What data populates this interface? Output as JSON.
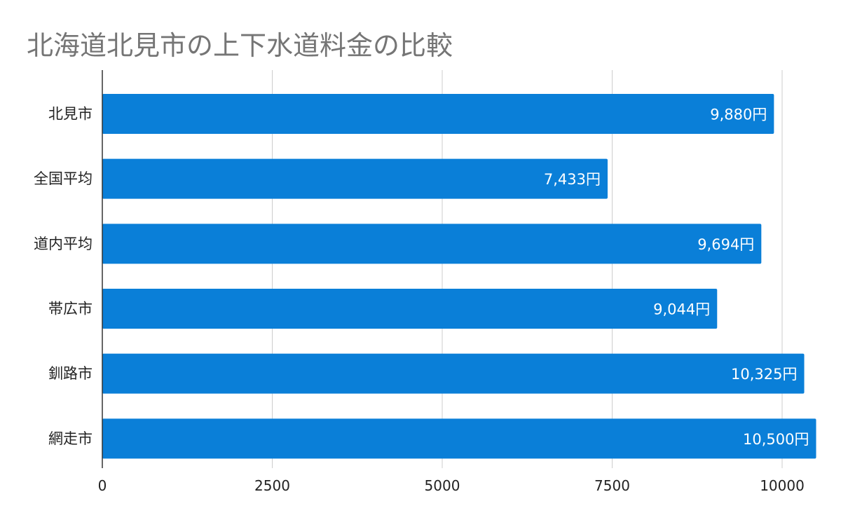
{
  "chart_data": {
    "type": "bar",
    "orientation": "horizontal",
    "title": "北海道北見市の上下水道料金の比較",
    "categories": [
      "北見市",
      "全国平均",
      "道内平均",
      "帯広市",
      "釧路市",
      "網走市"
    ],
    "series": [
      {
        "values": [
          9880,
          7433,
          9694,
          9044,
          10325,
          10500
        ],
        "data_labels": [
          "9,880円",
          "7,433円",
          "9,694円",
          "9,044円",
          "10,325円",
          "10,500円"
        ]
      }
    ],
    "xlim": [
      0,
      10000
    ],
    "x_ticks": [
      "0",
      "2500",
      "5000",
      "7500",
      "10000"
    ],
    "grid": true,
    "legend": "none",
    "colors": {
      "bar": "#0a7fd8",
      "grid": "#cccccc",
      "axis": "#333333",
      "title": "#757575"
    }
  }
}
